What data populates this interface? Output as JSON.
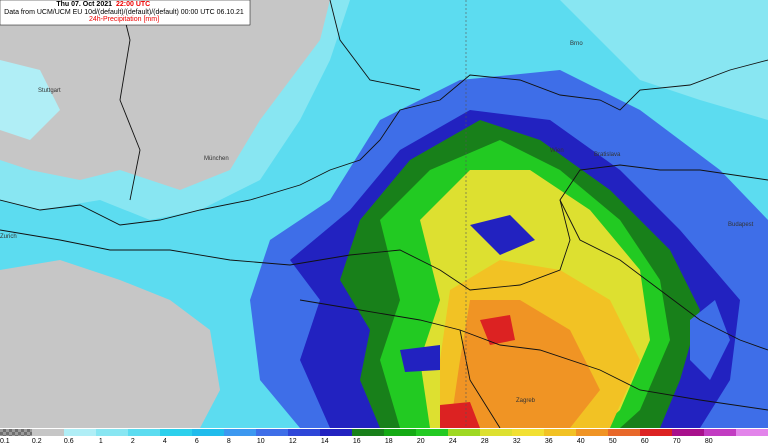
{
  "header": {
    "date": "Thu 07. Oct 2021",
    "time": "22:00 UTC",
    "source": "Data from UCM/UCM EU 10d/(default)/(default)/(default) 00:00 UTC 06.10.21",
    "variable": "24h-Precipitation [mm]"
  },
  "cities": [
    {
      "label": "Stuttgart"
    },
    {
      "label": "München"
    },
    {
      "label": "Zurich"
    },
    {
      "label": "Brno"
    },
    {
      "label": "Bratislava"
    },
    {
      "label": "Wien"
    },
    {
      "label": "Budapest"
    },
    {
      "label": "Zagreb"
    }
  ],
  "legend": {
    "labels": [
      "0.1",
      "0.2",
      "0.6",
      "1",
      "2",
      "4",
      "6",
      "8",
      "10",
      "12",
      "14",
      "16",
      "18",
      "20",
      "24",
      "28",
      "32",
      "36",
      "40",
      "50",
      "60",
      "70",
      "80"
    ],
    "colors": [
      "#8e8e8e",
      "#c6c6c6",
      "#b0eef6",
      "#88e6f2",
      "#5cdcf0",
      "#2cd0ec",
      "#20bcec",
      "#3c98f0",
      "#3e6ee8",
      "#2e46d8",
      "#2222c0",
      "#18801a",
      "#14aa14",
      "#22ca22",
      "#9ed822",
      "#dde030",
      "#f2e032",
      "#f2c224",
      "#f09424",
      "#e8682a",
      "#dc2222",
      "#a8108c",
      "#c23cc2",
      "#e284ea"
    ]
  }
}
